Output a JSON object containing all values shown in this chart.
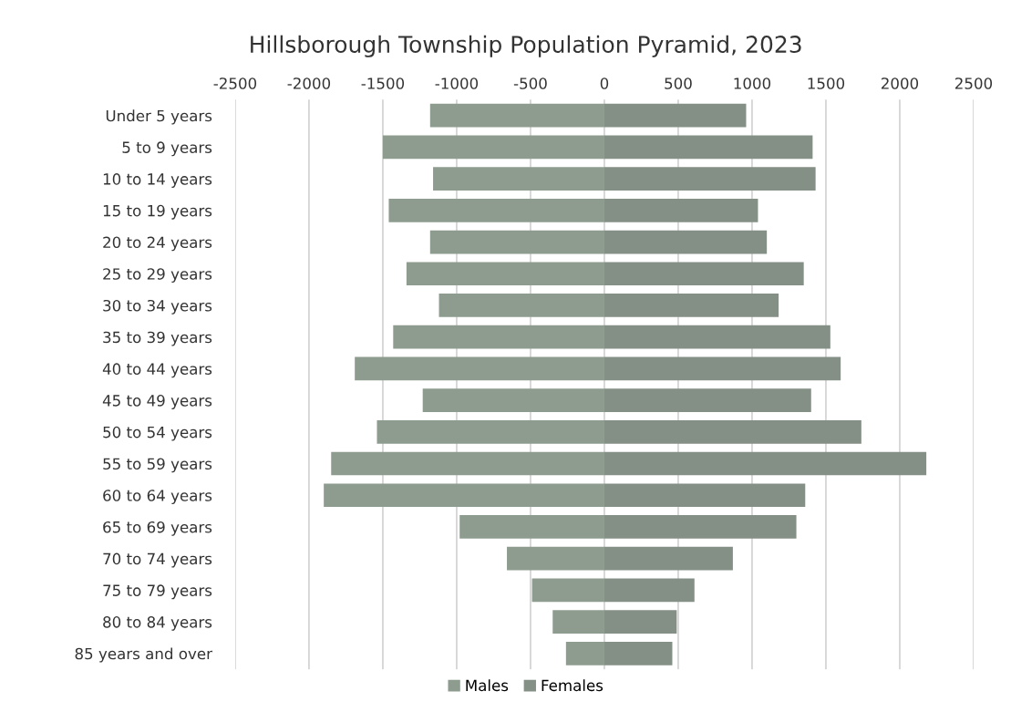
{
  "chart_data": {
    "type": "bar",
    "orientation": "horizontal",
    "stacked": true,
    "title": "Hillsborough Township Population Pyramid, 2023",
    "categories": [
      "Under 5 years",
      "5 to 9 years",
      "10 to 14 years",
      "15 to 19 years",
      "20 to 24 years",
      "25 to 29 years",
      "30 to 34 years",
      "35 to 39 years",
      "40 to 44 years",
      "45 to 49 years",
      "50 to 54 years",
      "55 to 59 years",
      "60 to 64 years",
      "65 to 69 years",
      "70 to 74 years",
      "75 to 79 years",
      "80 to 84 years",
      "85 years and over"
    ],
    "series": [
      {
        "name": "Males",
        "color": "#8e9c90",
        "values": [
          -1180,
          -1500,
          -1160,
          -1460,
          -1180,
          -1340,
          -1120,
          -1430,
          -1690,
          -1230,
          -1540,
          -1850,
          -1900,
          -980,
          -660,
          -490,
          -350,
          -260
        ]
      },
      {
        "name": "Females",
        "color": "#848f86",
        "values": [
          960,
          1410,
          1430,
          1040,
          1100,
          1350,
          1180,
          1530,
          1600,
          1400,
          1740,
          2180,
          1360,
          1300,
          870,
          610,
          490,
          460
        ]
      }
    ],
    "xlim": [
      -2500,
      2500
    ],
    "xticks": [
      -2500,
      -2000,
      -1500,
      -1000,
      -500,
      0,
      500,
      1000,
      1500,
      2000,
      2500
    ],
    "grid": "x",
    "legend": "bottom"
  }
}
